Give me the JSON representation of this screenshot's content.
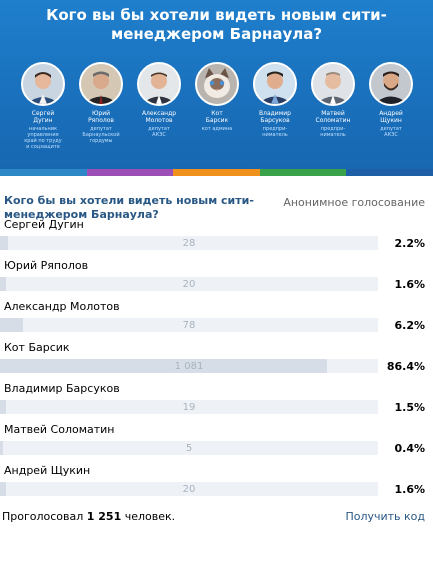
{
  "banner": {
    "title_line1": "Кого вы бы хотели видеть новым сити-",
    "title_line2": "менеджером Барнаула?",
    "stripe_colors": [
      "#2e88c8",
      "#9c4fb7",
      "#f0911e",
      "#39a24a",
      "#1f5fa8"
    ],
    "candidates": [
      {
        "name": "Сергей\nДугин",
        "role": "начальник\nуправления\nкрай по труду\nи соцзащите",
        "photo": "man-white-shirt"
      },
      {
        "name": "Юрий\nРяполов",
        "role": "депутат\nБарнаульской\nгордумы",
        "photo": "man-dark-suit"
      },
      {
        "name": "Александр\nМолотов",
        "role": "депутат\nАКЗС",
        "photo": "man-suit"
      },
      {
        "name": "Кот\nБарсик",
        "role": "кот админа",
        "photo": "cat"
      },
      {
        "name": "Владимир\nБарсуков",
        "role": "предпри-\nниматель",
        "photo": "man-blue-shirt"
      },
      {
        "name": "Матвей\nСоломатин",
        "role": "предпри-\nниматель",
        "photo": "man-grey-suit"
      },
      {
        "name": "Андрей\nЩукин",
        "role": "депутат\nАКЗС",
        "photo": "man-beard"
      }
    ]
  },
  "poll": {
    "question": "Кого бы вы хотели видеть новым сити-менеджером Барнаула?",
    "anonymous_label": "Анонимное голосование",
    "options": [
      {
        "label": "Сергей Дугин",
        "count": "28",
        "percent": "2.2%",
        "share": 0.022
      },
      {
        "label": "Юрий Ряполов",
        "count": "20",
        "percent": "1.6%",
        "share": 0.016
      },
      {
        "label": "Александр Молотов",
        "count": "78",
        "percent": "6.2%",
        "share": 0.062
      },
      {
        "label": "Кот Барсик",
        "count": "1 081",
        "percent": "86.4%",
        "share": 0.864
      },
      {
        "label": "Владимир Барсуков",
        "count": "19",
        "percent": "1.5%",
        "share": 0.015
      },
      {
        "label": "Матвей Соломатин",
        "count": "5",
        "percent": "0.4%",
        "share": 0.004
      },
      {
        "label": "Андрей Щукин",
        "count": "20",
        "percent": "1.6%",
        "share": 0.016
      }
    ],
    "total_prefix": "Проголосовал",
    "total_count": "1 251",
    "total_suffix": "человек.",
    "get_code_label": "Получить код"
  }
}
